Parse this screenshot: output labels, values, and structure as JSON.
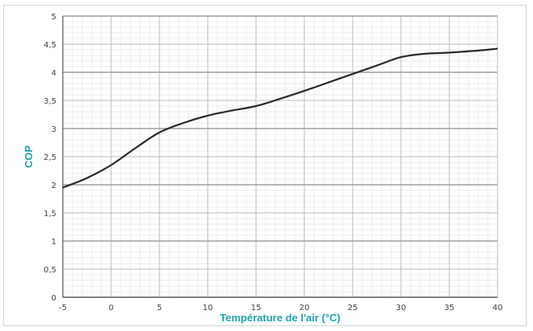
{
  "chart_data": {
    "type": "line",
    "xlabel": "Température de l'air (°C)",
    "ylabel": "COP",
    "xlim": [
      -5,
      40
    ],
    "ylim": [
      0,
      5
    ],
    "x_ticks": [
      "-5",
      "0",
      "5",
      "10",
      "15",
      "20",
      "25",
      "30",
      "35",
      "40"
    ],
    "y_ticks": [
      "0",
      "0,5",
      "1",
      "1,5",
      "2",
      "2,5",
      "3",
      "3,5",
      "4",
      "4,5",
      "5"
    ],
    "grid": true,
    "series": [
      {
        "x": [
          -5,
          -2.5,
          0,
          2.5,
          5,
          7.5,
          10,
          12.5,
          15,
          17.5,
          20,
          22.5,
          25,
          27.5,
          30,
          32.5,
          35,
          37.5,
          40
        ],
        "y": [
          1.95,
          2.12,
          2.35,
          2.65,
          2.93,
          3.1,
          3.23,
          3.32,
          3.4,
          3.53,
          3.67,
          3.82,
          3.97,
          4.12,
          4.27,
          4.33,
          4.35,
          4.38,
          4.42
        ],
        "color": "#2a2a2a"
      }
    ]
  }
}
